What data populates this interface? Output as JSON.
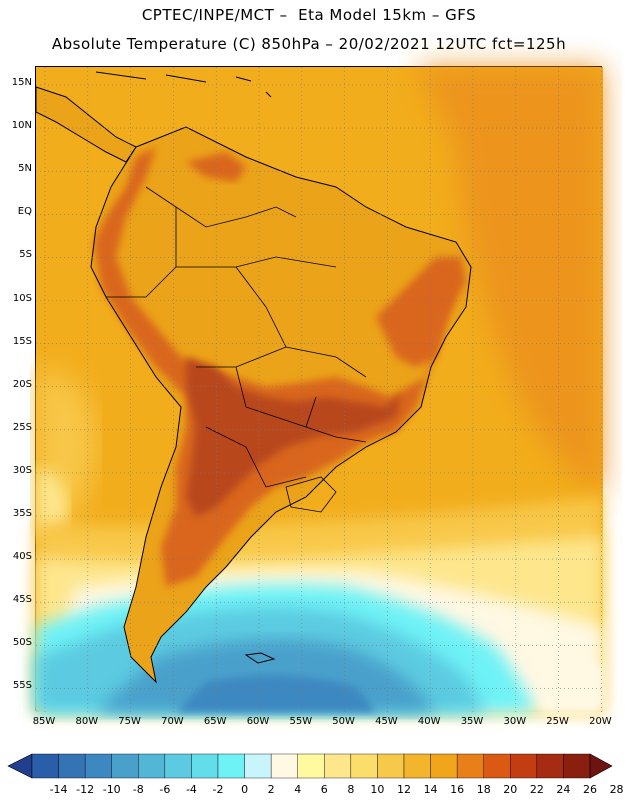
{
  "header": {
    "line1": "CPTEC/INPE/MCT –  Eta Model 15km – GFS",
    "line2": "Absolute Temperature (C) 850hPa – 20/02/2021 12UTC fct=125h"
  },
  "map": {
    "lat_labels": [
      "15N",
      "10N",
      "5N",
      "EQ",
      "5S",
      "10S",
      "15S",
      "20S",
      "25S",
      "30S",
      "35S",
      "40S",
      "45S",
      "50S",
      "55S"
    ],
    "lon_labels": [
      "85W",
      "80W",
      "75W",
      "70W",
      "65W",
      "60W",
      "55W",
      "50W",
      "45W",
      "40W",
      "35W",
      "30W",
      "25W",
      "20W"
    ],
    "colors": {
      "ocean_warm": "#f0ad1b",
      "land": "#e9a319",
      "hot": "#d9661a",
      "hotter": "#b8461a",
      "pale": "#fde68c",
      "cold_cyan": "#5ad8ee",
      "cold_blue": "#3fa6cf",
      "deep_blue": "#2e87c0"
    }
  },
  "colorbar": {
    "labels": [
      "-14",
      "-12",
      "-10",
      "-8",
      "-6",
      "-4",
      "-2",
      "0",
      "2",
      "4",
      "6",
      "8",
      "10",
      "12",
      "14",
      "16",
      "18",
      "20",
      "22",
      "24",
      "26",
      "28"
    ],
    "colors": [
      "#213f8f",
      "#2b5ea8",
      "#3474b5",
      "#3e88c1",
      "#48a0cb",
      "#52b6d6",
      "#5ccbe1",
      "#64ddeb",
      "#6ef2f6",
      "#c8f4fb",
      "#fff8e3",
      "#fffaa0",
      "#fde68c",
      "#fadd6a",
      "#f7c94a",
      "#f3b52c",
      "#f0a51b",
      "#e97f18",
      "#db5a13",
      "#c23e12",
      "#a52b12",
      "#8a1f10",
      "#6e1410"
    ]
  }
}
